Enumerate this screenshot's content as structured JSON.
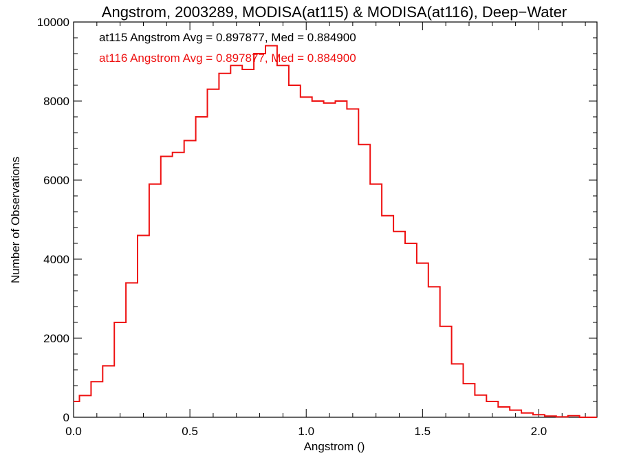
{
  "chart_data": {
    "type": "line",
    "title": "Angstrom, 2003289, MODISA(at115) & MODISA(at116), Deep−Water",
    "xlabel": "Angstrom ()",
    "ylabel": "Number of Observations",
    "xlim": [
      0.0,
      2.25
    ],
    "ylim": [
      0,
      10000
    ],
    "x_ticks": [
      "0.0",
      "0.5",
      "1.0",
      "1.5",
      "2.0"
    ],
    "y_ticks": [
      "0",
      "2000",
      "4000",
      "6000",
      "8000",
      "10000"
    ],
    "grid": false,
    "legend": "none",
    "annotations": [
      {
        "text": "at115 Angstrom Avg = 0.897877, Med = 0.884900",
        "color": "#000000"
      },
      {
        "text": "at116 Angstrom Avg = 0.897877, Med = 0.884900",
        "color": "#ee1111"
      }
    ],
    "series": [
      {
        "color": "#ee1111",
        "x": [
          0.0,
          0.05,
          0.1,
          0.15,
          0.2,
          0.25,
          0.3,
          0.35,
          0.4,
          0.45,
          0.5,
          0.55,
          0.6,
          0.65,
          0.7,
          0.75,
          0.8,
          0.85,
          0.9,
          0.95,
          1.0,
          1.05,
          1.1,
          1.15,
          1.2,
          1.25,
          1.3,
          1.35,
          1.4,
          1.45,
          1.5,
          1.55,
          1.6,
          1.65,
          1.7,
          1.75,
          1.8,
          1.85,
          1.9,
          1.95,
          2.0,
          2.05,
          2.1,
          2.15,
          2.2,
          2.25
        ],
        "values": [
          400,
          550,
          900,
          1300,
          2400,
          3400,
          4600,
          5900,
          6600,
          6700,
          7000,
          7600,
          8300,
          8700,
          8900,
          8800,
          9200,
          9400,
          8900,
          8400,
          8100,
          8000,
          7950,
          8000,
          7800,
          6900,
          5900,
          5100,
          4700,
          4400,
          3900,
          3300,
          2300,
          1350,
          850,
          560,
          400,
          260,
          180,
          110,
          65,
          30,
          10,
          40,
          0,
          0
        ]
      }
    ]
  }
}
